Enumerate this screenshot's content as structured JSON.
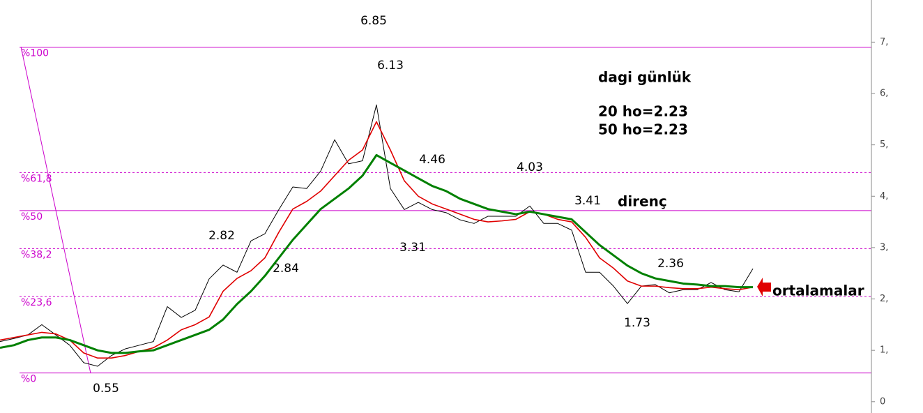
{
  "chart_data": {
    "type": "line",
    "title": "dagi günlük",
    "subtitle": [
      "20 ho=2.23",
      "50 ho=2.23"
    ],
    "annotations": [
      "6.85",
      "6.13",
      "4.46",
      "4.03",
      "3.41",
      "2.82",
      "2.84",
      "3.31",
      "2.36",
      "1.73",
      "0.55",
      "direnç",
      "ortalamalar"
    ],
    "categories": [
      null,
      null,
      null,
      null,
      null,
      null,
      null,
      null,
      null,
      null,
      null,
      null,
      null,
      null,
      null,
      null,
      null,
      null,
      null,
      null,
      null,
      null,
      null,
      null,
      null,
      null,
      null,
      null,
      null,
      null,
      null,
      null,
      null,
      null,
      null,
      null,
      null,
      null,
      null,
      null,
      null,
      null,
      null,
      null,
      null,
      null,
      null,
      null,
      null,
      null,
      null,
      null,
      null,
      null,
      null
    ],
    "series": [
      {
        "color": "#000000",
        "width": 1,
        "values": [
          1.17,
          1.23,
          1.3,
          1.5,
          1.3,
          1.1,
          0.76,
          0.69,
          0.9,
          1.03,
          1.1,
          1.17,
          1.85,
          1.64,
          1.78,
          2.39,
          2.66,
          2.52,
          3.13,
          3.27,
          3.74,
          4.18,
          4.15,
          4.49,
          5.1,
          4.63,
          4.69,
          5.78,
          4.15,
          3.74,
          3.88,
          3.74,
          3.68,
          3.54,
          3.47,
          3.61,
          3.61,
          3.61,
          3.81,
          3.47,
          3.47,
          3.34,
          2.52,
          2.52,
          2.25,
          1.91,
          2.25,
          2.28,
          2.12,
          2.18,
          2.18,
          2.32,
          2.18,
          2.14,
          2.59
        ]
      },
      {
        "color": "#e00000",
        "width": 1.6,
        "values": [
          1.2,
          1.25,
          1.3,
          1.35,
          1.32,
          1.2,
          0.95,
          0.85,
          0.85,
          0.9,
          0.98,
          1.05,
          1.2,
          1.4,
          1.5,
          1.65,
          2.15,
          2.4,
          2.55,
          2.8,
          3.3,
          3.75,
          3.9,
          4.1,
          4.4,
          4.7,
          4.9,
          5.45,
          4.9,
          4.3,
          4.0,
          3.85,
          3.75,
          3.65,
          3.55,
          3.5,
          3.52,
          3.55,
          3.7,
          3.65,
          3.55,
          3.5,
          3.2,
          2.8,
          2.6,
          2.35,
          2.25,
          2.25,
          2.22,
          2.2,
          2.2,
          2.23,
          2.2,
          2.18,
          2.23
        ]
      },
      {
        "color": "#008000",
        "width": 3,
        "values": [
          1.05,
          1.1,
          1.2,
          1.25,
          1.25,
          1.2,
          1.1,
          1.0,
          0.95,
          0.95,
          0.98,
          1.0,
          1.1,
          1.2,
          1.3,
          1.4,
          1.6,
          1.9,
          2.15,
          2.45,
          2.8,
          3.15,
          3.45,
          3.75,
          3.95,
          4.15,
          4.4,
          4.8,
          4.65,
          4.5,
          4.35,
          4.2,
          4.1,
          3.95,
          3.85,
          3.75,
          3.7,
          3.65,
          3.7,
          3.65,
          3.6,
          3.55,
          3.3,
          3.05,
          2.85,
          2.65,
          2.5,
          2.4,
          2.35,
          2.3,
          2.28,
          2.25,
          2.25,
          2.23,
          2.23
        ]
      }
    ],
    "levels": [
      {
        "name": "%100",
        "value": 6.9,
        "dashed": false
      },
      {
        "name": "%61,8",
        "value": 4.46,
        "dashed": true
      },
      {
        "name": "%50",
        "value": 3.72,
        "dashed": false
      },
      {
        "name": "%38,2",
        "value": 2.98,
        "dashed": true
      },
      {
        "name": "%23,6",
        "value": 2.05,
        "dashed": true
      },
      {
        "name": "%0",
        "value": 0.56,
        "dashed": false
      }
    ],
    "level_color": "#cc00cc",
    "ylim": [
      -0.22,
      7.82
    ],
    "yticks": [
      0,
      {
        "value": 1,
        "label": "1,"
      },
      {
        "value": 2,
        "label": "2,"
      },
      {
        "value": 3,
        "label": "3,"
      },
      {
        "value": 4,
        "label": "4,"
      },
      {
        "value": 5,
        "label": "5,"
      },
      {
        "value": 6,
        "label": "6,"
      },
      {
        "value": 7,
        "label": "7,"
      }
    ]
  }
}
